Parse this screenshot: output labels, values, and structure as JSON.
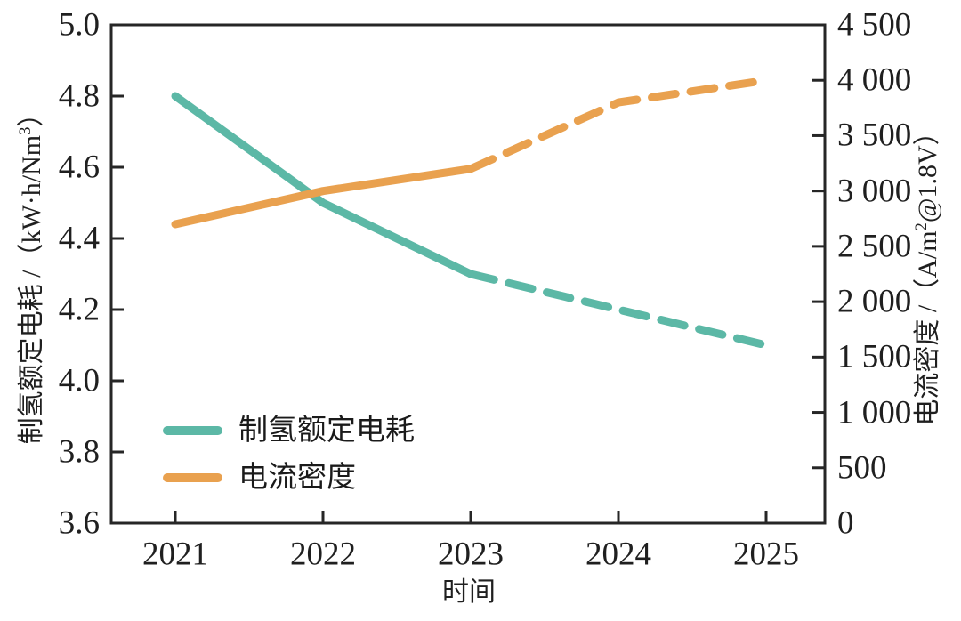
{
  "chart_data": {
    "type": "line",
    "title": "",
    "xlabel": "时间",
    "x": [
      2021,
      2022,
      2023,
      2024,
      2025
    ],
    "x_tick_labels": [
      "2021",
      "2022",
      "2023",
      "2024",
      "2025"
    ],
    "left_axis": {
      "label": "制氢额定电耗 /（kW·h/Nm³）",
      "label_prefix": "制氢额定电耗 /（kW·h/Nm",
      "label_sup": "3",
      "label_suffix": "）",
      "min": 3.6,
      "max": 5.0,
      "tick_values": [
        5.0,
        4.8,
        4.6,
        4.4,
        4.2,
        4.0,
        3.8,
        3.6
      ],
      "tick_labels": [
        "5.0",
        "4.8",
        "4.6",
        "4.4",
        "4.2",
        "4.0",
        "3.8",
        "3.6"
      ]
    },
    "right_axis": {
      "label": "电流密度 /（A/m²@1.8V）",
      "label_prefix": "电流密度 /（A/m",
      "label_sup": "2",
      "label_suffix": "@1.8V）",
      "min": 0,
      "max": 4500,
      "tick_values": [
        4500,
        4000,
        3500,
        3000,
        2500,
        2000,
        1500,
        1000,
        500,
        0
      ],
      "tick_labels": [
        "4 500",
        "4 000",
        "3 500",
        "3 000",
        "2 500",
        "2 000",
        "1 500",
        "1 000",
        "500",
        "0"
      ]
    },
    "series": [
      {
        "name": "制氢额定电耗",
        "axis": "left",
        "color": "#5cb8a6",
        "values": [
          4.8,
          4.5,
          4.3,
          4.2,
          4.1
        ],
        "solid_through": 2023,
        "projection_style": "dashed"
      },
      {
        "name": "电流密度",
        "axis": "right",
        "color": "#e9a14f",
        "values": [
          2700,
          3000,
          3200,
          3800,
          4000
        ],
        "solid_through": 2023,
        "projection_style": "dashed"
      }
    ],
    "legend": {
      "position": "inside-bottom-left",
      "items": [
        {
          "label": "制氢额定电耗",
          "color": "#5cb8a6"
        },
        {
          "label": "电流密度",
          "color": "#e9a14f"
        }
      ]
    },
    "frame_color": "#262626",
    "text_color": "#1f1f1f",
    "background": "#ffffff",
    "grid": "off"
  }
}
